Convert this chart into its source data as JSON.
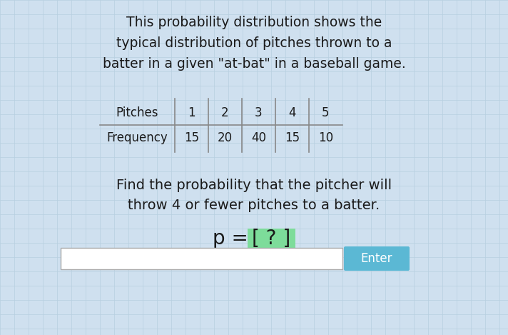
{
  "title_line1": "This probability distribution shows the",
  "title_line2": "typical distribution of pitches thrown to a",
  "title_line3": "batter in a given \"at-bat\" in a baseball game.",
  "table_header": [
    "Pitches",
    "1",
    "2",
    "3",
    "4",
    "5"
  ],
  "table_row": [
    "Frequency",
    "15",
    "20",
    "40",
    "15",
    "10"
  ],
  "question_line1": "Find the probability that the pitcher will",
  "question_line2": "throw 4 or fewer pitches to a batter.",
  "p_text": "p = ",
  "bracket_text": "[ ? ]",
  "bg_color": "#cfe0ef",
  "grid_color": "#b8cfe0",
  "table_line_color": "#888888",
  "text_color": "#1a1a1a",
  "bracket_bg_color": "#7ddc9a",
  "input_box_color": "#ffffff",
  "input_border_color": "#aaaaaa",
  "enter_button_color": "#5bb8d4",
  "enter_text_color": "#ffffff",
  "enter_text": "Enter",
  "title_fontsize": 13.5,
  "table_fontsize": 12,
  "question_fontsize": 14,
  "eq_fontsize": 20,
  "enter_fontsize": 12
}
